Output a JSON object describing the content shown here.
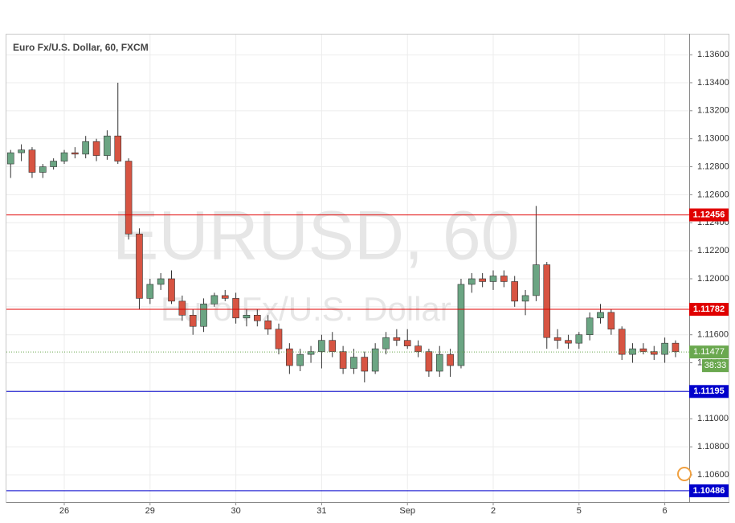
{
  "chart_data": {
    "type": "candlestick",
    "title": "Euro Fx/U.S. Dollar, 60, FXCM",
    "watermark": "EURUSD, 60",
    "watermark_subtitle": "Euro Fx/U.S. Dollar",
    "x": [
      -15,
      -12,
      -9,
      -6,
      -3,
      0,
      3,
      6,
      9,
      12,
      15,
      18,
      21,
      24,
      27,
      30,
      33,
      36,
      39,
      42,
      45,
      48,
      51,
      54,
      57,
      60,
      63,
      66,
      69,
      72,
      75,
      78,
      81,
      84,
      87,
      90,
      93,
      96,
      99,
      102,
      105,
      108,
      111,
      114,
      117,
      120,
      123,
      126,
      129,
      132,
      135,
      138,
      141,
      144,
      147,
      150,
      153,
      156,
      159,
      162,
      165,
      168,
      171
    ],
    "open": [
      1.1282,
      1.129,
      1.1292,
      1.1276,
      1.128,
      1.1284,
      1.129,
      1.1289,
      1.1298,
      1.1288,
      1.1302,
      1.1284,
      1.1232,
      1.1186,
      1.1196,
      1.12,
      1.1184,
      1.1174,
      1.1166,
      1.1182,
      1.1188,
      1.1186,
      1.1172,
      1.1174,
      1.117,
      1.1164,
      1.115,
      1.1138,
      1.1146,
      1.1148,
      1.1156,
      1.1148,
      1.1136,
      1.1144,
      1.1134,
      1.115,
      1.1158,
      1.1156,
      1.1152,
      1.1148,
      1.1134,
      1.1146,
      1.1138,
      1.1196,
      1.12,
      1.1198,
      1.1202,
      1.1198,
      1.1184,
      1.1188,
      1.121,
      1.1158,
      1.1156,
      1.1154,
      1.116,
      1.1172,
      1.1176,
      1.1164,
      1.1146,
      1.115,
      1.1148,
      1.1146,
      1.1154
    ],
    "high": [
      1.1292,
      1.1296,
      1.1294,
      1.1282,
      1.1286,
      1.1292,
      1.1294,
      1.1302,
      1.13,
      1.1306,
      1.134,
      1.1286,
      1.1236,
      1.12,
      1.1204,
      1.1206,
      1.1188,
      1.1178,
      1.1186,
      1.119,
      1.1192,
      1.119,
      1.1178,
      1.1178,
      1.1174,
      1.1168,
      1.1154,
      1.115,
      1.1152,
      1.116,
      1.1162,
      1.1152,
      1.115,
      1.1148,
      1.1154,
      1.1162,
      1.1164,
      1.1164,
      1.1156,
      1.115,
      1.1152,
      1.115,
      1.12,
      1.1204,
      1.1204,
      1.1206,
      1.1206,
      1.1202,
      1.1192,
      1.1252,
      1.1212,
      1.1164,
      1.116,
      1.1162,
      1.1176,
      1.1182,
      1.1178,
      1.1166,
      1.1154,
      1.1154,
      1.1152,
      1.1158,
      1.1156
    ],
    "low": [
      1.1272,
      1.1284,
      1.1272,
      1.1272,
      1.1278,
      1.1282,
      1.1286,
      1.1286,
      1.1284,
      1.1285,
      1.1282,
      1.1228,
      1.1178,
      1.1182,
      1.1192,
      1.1182,
      1.117,
      1.116,
      1.1162,
      1.118,
      1.1184,
      1.1168,
      1.1166,
      1.1166,
      1.116,
      1.1146,
      1.1132,
      1.1134,
      1.114,
      1.1136,
      1.1144,
      1.1132,
      1.1132,
      1.1126,
      1.1132,
      1.1146,
      1.1152,
      1.115,
      1.1144,
      1.113,
      1.113,
      1.113,
      1.1136,
      1.119,
      1.1194,
      1.1192,
      1.1194,
      1.118,
      1.1174,
      1.1184,
      1.115,
      1.115,
      1.115,
      1.115,
      1.1156,
      1.1168,
      1.116,
      1.1142,
      1.114,
      1.1146,
      1.1142,
      1.114,
      1.1144
    ],
    "close": [
      1.129,
      1.1292,
      1.1276,
      1.128,
      1.1284,
      1.129,
      1.1289,
      1.1298,
      1.1288,
      1.1302,
      1.1284,
      1.1232,
      1.1186,
      1.1196,
      1.12,
      1.1184,
      1.1174,
      1.1166,
      1.1182,
      1.1188,
      1.1186,
      1.1172,
      1.1174,
      1.117,
      1.1164,
      1.115,
      1.1138,
      1.1146,
      1.1148,
      1.1156,
      1.1148,
      1.1136,
      1.1144,
      1.1134,
      1.115,
      1.1158,
      1.1156,
      1.1152,
      1.1148,
      1.1134,
      1.1146,
      1.1138,
      1.1196,
      1.12,
      1.1198,
      1.1202,
      1.1198,
      1.1184,
      1.1188,
      1.121,
      1.1158,
      1.1156,
      1.1154,
      1.116,
      1.1172,
      1.1176,
      1.1164,
      1.1146,
      1.115,
      1.1148,
      1.1146,
      1.1154,
      1.1148
    ],
    "up_color": "#6ba583",
    "down_color": "#d75442",
    "levels": [
      {
        "value": 1.12456,
        "color": "#e00000"
      },
      {
        "value": 1.11782,
        "color": "#e00000"
      },
      {
        "value": 1.11195,
        "color": "#0000cc"
      },
      {
        "value": 1.10486,
        "color": "#0000cc"
      }
    ],
    "last": {
      "value": 1.11477,
      "countdown": "38:33",
      "color": "#6aa84f"
    },
    "xlim": [
      -16.18,
      174.83
    ],
    "xticks": [
      {
        "value": 0,
        "label": "26"
      },
      {
        "value": 24,
        "label": "29"
      },
      {
        "value": 48,
        "label": "30"
      },
      {
        "value": 72,
        "label": "31"
      },
      {
        "value": 96,
        "label": "Sep"
      },
      {
        "value": 120,
        "label": "2"
      },
      {
        "value": 144,
        "label": "5"
      },
      {
        "value": 168,
        "label": "6"
      }
    ],
    "ylim": [
      1.10405,
      1.13744
    ],
    "yticks": [
      {
        "value": 1.106,
        "label": "1.10600"
      },
      {
        "value": 1.108,
        "label": "1.10800"
      },
      {
        "value": 1.11,
        "label": "1.11000"
      },
      {
        "value": 1.112,
        "label": "1.11200"
      },
      {
        "value": 1.114,
        "label": "1.11400"
      },
      {
        "value": 1.116,
        "label": "1.11600"
      },
      {
        "value": 1.118,
        "label": "1.11800"
      },
      {
        "value": 1.12,
        "label": "1.12000"
      },
      {
        "value": 1.122,
        "label": "1.12200"
      },
      {
        "value": 1.124,
        "label": "1.12400"
      },
      {
        "value": 1.126,
        "label": "1.12600"
      },
      {
        "value": 1.128,
        "label": "1.12800"
      },
      {
        "value": 1.13,
        "label": "1.13000"
      },
      {
        "value": 1.132,
        "label": "1.13200"
      },
      {
        "value": 1.134,
        "label": "1.13400"
      },
      {
        "value": 1.136,
        "label": "1.13600"
      }
    ],
    "grid": true
  }
}
